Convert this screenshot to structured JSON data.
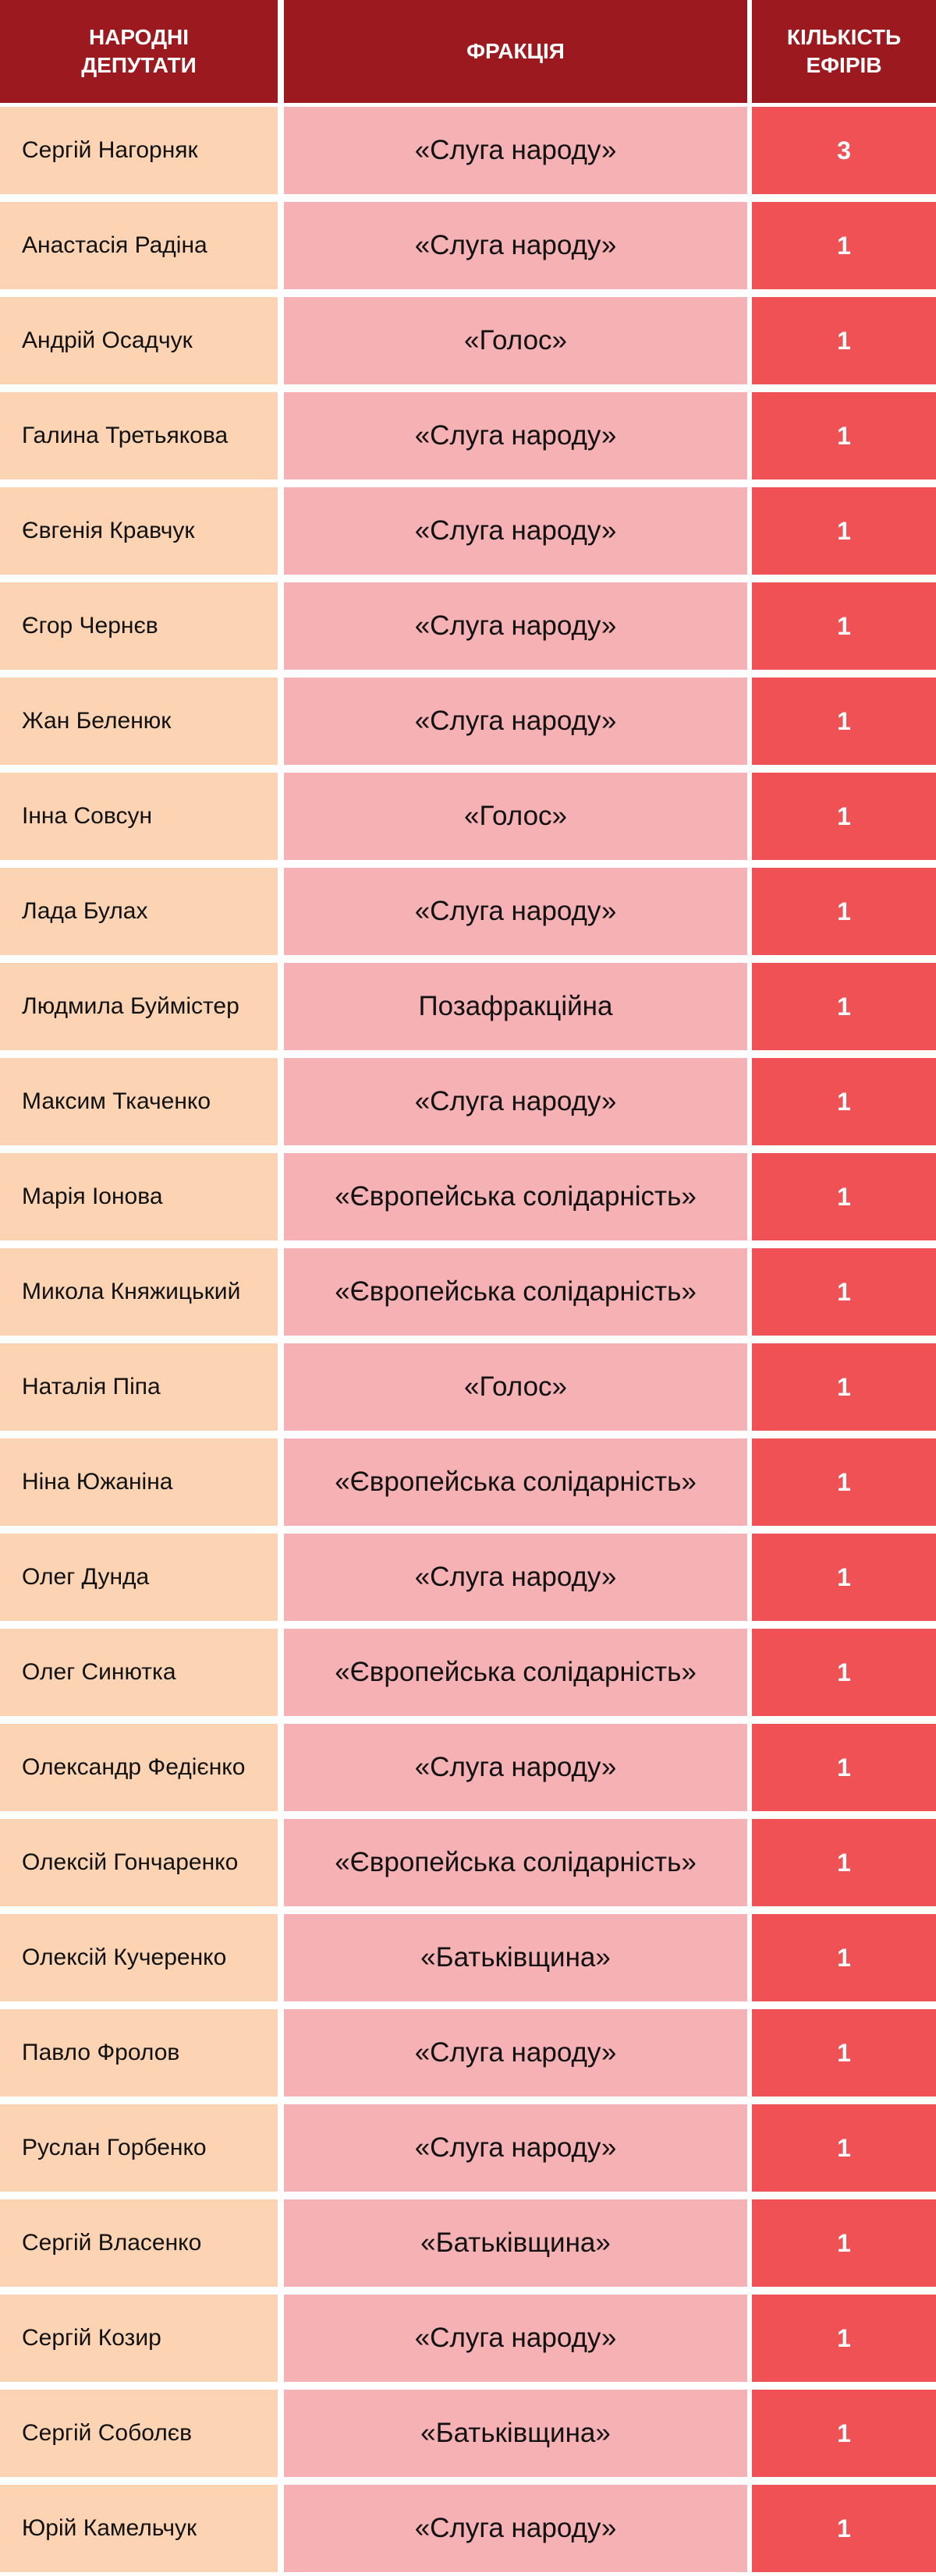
{
  "header": {
    "deputies": "НАРОДНІ\nДЕПУТАТИ",
    "faction": "ФРАКЦІЯ",
    "count": "КІЛЬКІСТЬ\nЕФІРІВ"
  },
  "rows": [
    {
      "name": "Сергій Нагорняк",
      "faction": "«Слуга народу»",
      "count": "3"
    },
    {
      "name": "Анастасія Радіна",
      "faction": "«Слуга народу»",
      "count": "1"
    },
    {
      "name": "Андрій Осадчук",
      "faction": "«Голос»",
      "count": "1"
    },
    {
      "name": "Галина Третьякова",
      "faction": "«Слуга народу»",
      "count": "1"
    },
    {
      "name": "Євгенія Кравчук",
      "faction": "«Слуга народу»",
      "count": "1"
    },
    {
      "name": "Єгор Чернєв",
      "faction": "«Слуга народу»",
      "count": "1"
    },
    {
      "name": "Жан Беленюк",
      "faction": "«Слуга народу»",
      "count": "1"
    },
    {
      "name": "Інна Совсун",
      "faction": "«Голос»",
      "count": "1"
    },
    {
      "name": "Лада Булах",
      "faction": "«Слуга народу»",
      "count": "1"
    },
    {
      "name": "Людмила Буймістер",
      "faction": "Позафракційна",
      "count": "1"
    },
    {
      "name": "Максим Ткаченко",
      "faction": "«Слуга народу»",
      "count": "1"
    },
    {
      "name": "Марія Іонова",
      "faction": "«Європейська солідарність»",
      "count": "1"
    },
    {
      "name": "Микола Княжицький",
      "faction": "«Європейська солідарність»",
      "count": "1"
    },
    {
      "name": "Наталія Піпа",
      "faction": "«Голос»",
      "count": "1"
    },
    {
      "name": "Ніна Южаніна",
      "faction": "«Європейська солідарність»",
      "count": "1"
    },
    {
      "name": "Олег Дунда",
      "faction": "«Слуга народу»",
      "count": "1"
    },
    {
      "name": "Олег Синютка",
      "faction": "«Європейська солідарність»",
      "count": "1"
    },
    {
      "name": "Олександр Федієнко",
      "faction": "«Слуга народу»",
      "count": "1"
    },
    {
      "name": "Олексій Гончаренко",
      "faction": "«Європейська солідарність»",
      "count": "1"
    },
    {
      "name": "Олексій Кучеренко",
      "faction": "«Батьківщина»",
      "count": "1"
    },
    {
      "name": "Павло Фролов",
      "faction": "«Слуга народу»",
      "count": "1"
    },
    {
      "name": "Руслан Горбенко",
      "faction": "«Слуга народу»",
      "count": "1"
    },
    {
      "name": "Сергій Власенко",
      "faction": "«Батьківщина»",
      "count": "1"
    },
    {
      "name": "Сергій Козир",
      "faction": "«Слуга народу»",
      "count": "1"
    },
    {
      "name": "Сергій Соболєв",
      "faction": "«Батьківщина»",
      "count": "1"
    },
    {
      "name": "Юрій Камельчук",
      "faction": "«Слуга народу»",
      "count": "1"
    }
  ]
}
